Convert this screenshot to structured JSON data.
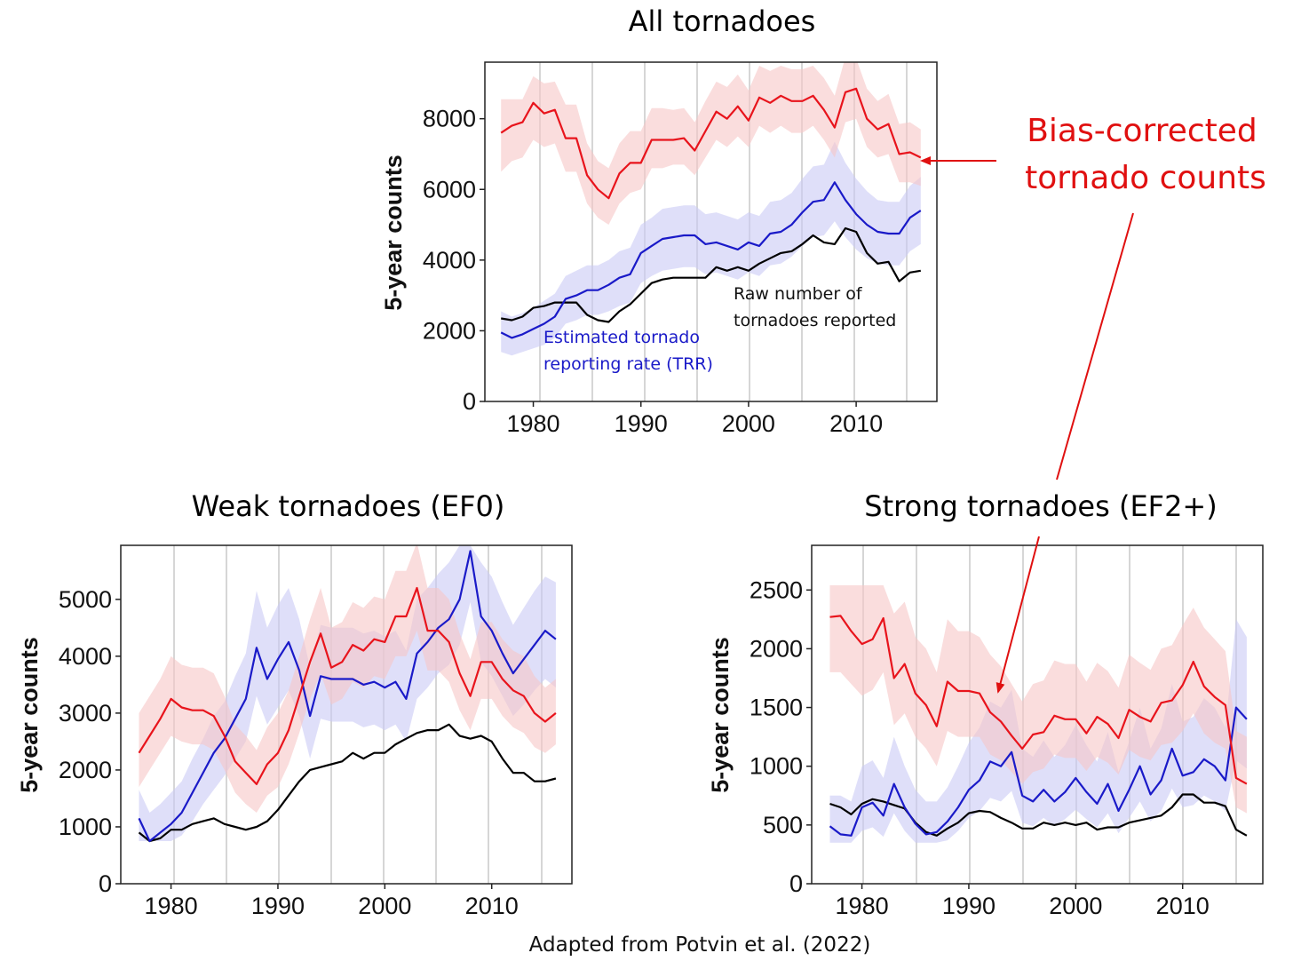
{
  "colors": {
    "bias_corrected": "#e8141c",
    "trr": "#1a1ac8",
    "raw": "#000000",
    "band_bias": "#f7c6c6",
    "band_trr": "#c9c9f5",
    "grid": "#d6d6d6"
  },
  "annotations": {
    "bias_corrected_line1": "Bias-corrected",
    "bias_corrected_line2": "tornado counts",
    "raw_line1": "Raw number of",
    "raw_line2": "tornadoes reported",
    "trr_line1": "Estimated tornado",
    "trr_line2": "reporting rate (TRR)",
    "credit": "Adapted from Potvin et al. (2022)"
  },
  "chart_data": [
    {
      "type": "line",
      "title": "All tornadoes",
      "ylabel": "5-year counts",
      "xlim": [
        1975.5,
        2017.5
      ],
      "ylim": [
        0,
        9600
      ],
      "xticks": [
        "1980",
        "1990",
        "2000",
        "2010"
      ],
      "yticks": [
        "0",
        "2000",
        "4000",
        "6000",
        "8000"
      ],
      "x": [
        1977,
        1978,
        1979,
        1980,
        1981,
        1982,
        1983,
        1984,
        1985,
        1986,
        1987,
        1988,
        1989,
        1990,
        1991,
        1992,
        1993,
        1994,
        1995,
        1996,
        1997,
        1998,
        1999,
        2000,
        2001,
        2002,
        2003,
        2004,
        2005,
        2006,
        2007,
        2008,
        2009,
        2010,
        2011,
        2012,
        2013,
        2014,
        2015,
        2016
      ],
      "series": [
        {
          "key": "bias",
          "values": [
            7600,
            7800,
            7900,
            8450,
            8150,
            8250,
            7450,
            7450,
            6400,
            6000,
            5750,
            6450,
            6750,
            6750,
            7400,
            7400,
            7400,
            7450,
            7100,
            7650,
            8200,
            8000,
            8350,
            7950,
            8600,
            8450,
            8650,
            8500,
            8500,
            8650,
            8250,
            7750,
            8750,
            8850,
            8000,
            7700,
            7850,
            7000,
            7050,
            6900
          ],
          "lower": [
            6500,
            6800,
            6900,
            7400,
            7200,
            7300,
            6500,
            6500,
            5600,
            5200,
            5000,
            5600,
            5900,
            6000,
            6600,
            6600,
            6700,
            6700,
            6400,
            6900,
            7400,
            7200,
            7500,
            7200,
            7800,
            7600,
            7800,
            7600,
            7600,
            7800,
            7400,
            6900,
            7900,
            8000,
            7200,
            6900,
            7000,
            6200,
            6200,
            6100
          ],
          "upper": [
            8550,
            8550,
            8550,
            9200,
            9000,
            9050,
            8400,
            8400,
            7300,
            6800,
            6600,
            7300,
            7650,
            7650,
            8300,
            8300,
            8250,
            8300,
            7900,
            8500,
            9050,
            8900,
            9250,
            8800,
            9500,
            9350,
            9500,
            9400,
            9400,
            9500,
            9150,
            8650,
            9750,
            9700,
            8850,
            8500,
            8700,
            7850,
            7900,
            7700
          ]
        },
        {
          "key": "trr",
          "values": [
            1950,
            1800,
            1900,
            2050,
            2200,
            2400,
            2900,
            3000,
            3150,
            3150,
            3300,
            3500,
            3600,
            4200,
            4400,
            4600,
            4650,
            4700,
            4700,
            4450,
            4500,
            4400,
            4300,
            4500,
            4400,
            4750,
            4800,
            5000,
            5350,
            5650,
            5700,
            6200,
            5700,
            5300,
            5000,
            4800,
            4750,
            4750,
            5200,
            5400
          ],
          "lower": [
            1400,
            1300,
            1400,
            1500,
            1600,
            1800,
            2200,
            2300,
            2450,
            2450,
            2550,
            2700,
            2800,
            3350,
            3550,
            3700,
            3750,
            3800,
            3800,
            3600,
            3650,
            3550,
            3450,
            3650,
            3550,
            3850,
            3900,
            4100,
            4400,
            4650,
            4700,
            5100,
            4650,
            4300,
            4050,
            3900,
            3850,
            3850,
            4250,
            4450
          ],
          "upper": [
            2550,
            2400,
            2500,
            2650,
            2850,
            3050,
            3550,
            3700,
            3850,
            3850,
            4000,
            4250,
            4350,
            5000,
            5200,
            5450,
            5500,
            5550,
            5550,
            5300,
            5350,
            5250,
            5150,
            5350,
            5250,
            5650,
            5700,
            5900,
            6300,
            6650,
            6700,
            7350,
            6750,
            6300,
            5950,
            5700,
            5650,
            5650,
            6100,
            6350
          ]
        },
        {
          "key": "raw",
          "values": [
            2350,
            2300,
            2400,
            2650,
            2700,
            2800,
            2800,
            2800,
            2450,
            2300,
            2250,
            2550,
            2750,
            3050,
            3350,
            3450,
            3500,
            3500,
            3500,
            3500,
            3800,
            3700,
            3800,
            3700,
            3900,
            4050,
            4200,
            4250,
            4450,
            4700,
            4500,
            4450,
            4900,
            4800,
            4200,
            3900,
            3950,
            3400,
            3650,
            3700
          ]
        }
      ]
    },
    {
      "type": "line",
      "title": "Weak tornadoes (EF0)",
      "ylabel": "5-year counts",
      "xlim": [
        1975.3,
        2017.5
      ],
      "ylim": [
        0,
        5950
      ],
      "xticks": [
        "1980",
        "1990",
        "2000",
        "2010"
      ],
      "yticks": [
        "0",
        "1000",
        "2000",
        "3000",
        "4000",
        "5000"
      ],
      "x": [
        1977,
        1978,
        1979,
        1980,
        1981,
        1982,
        1983,
        1984,
        1985,
        1986,
        1987,
        1988,
        1989,
        1990,
        1991,
        1992,
        1993,
        1994,
        1995,
        1996,
        1997,
        1998,
        1999,
        2000,
        2001,
        2002,
        2003,
        2004,
        2005,
        2006,
        2007,
        2008,
        2009,
        2010,
        2011,
        2012,
        2013,
        2014,
        2015,
        2016
      ],
      "series": [
        {
          "key": "bias",
          "values": [
            2300,
            2600,
            2900,
            3250,
            3100,
            3050,
            3050,
            2950,
            2600,
            2150,
            1950,
            1750,
            2100,
            2300,
            2700,
            3300,
            3900,
            4400,
            3800,
            3900,
            4200,
            4100,
            4300,
            4250,
            4700,
            4700,
            5200,
            4450,
            4450,
            4250,
            3700,
            3300,
            3900,
            3900,
            3600,
            3400,
            3300,
            3000,
            2850,
            3000
          ],
          "lower": [
            1700,
            2000,
            2300,
            2600,
            2500,
            2450,
            2450,
            2350,
            2000,
            1600,
            1400,
            1250,
            1550,
            1700,
            2100,
            2650,
            3250,
            3700,
            3150,
            3250,
            3550,
            3450,
            3650,
            3600,
            4000,
            4000,
            4450,
            3750,
            3750,
            3550,
            3050,
            2700,
            3250,
            3250,
            2950,
            2750,
            2650,
            2400,
            2300,
            2450
          ],
          "upper": [
            3000,
            3300,
            3600,
            4000,
            3850,
            3800,
            3800,
            3700,
            3300,
            2800,
            2600,
            2350,
            2750,
            3000,
            3400,
            4000,
            4650,
            5200,
            4500,
            4600,
            4950,
            4850,
            5050,
            5000,
            5500,
            5500,
            6000,
            5200,
            5200,
            5000,
            4400,
            3950,
            4600,
            4600,
            4300,
            4100,
            4000,
            3650,
            3450,
            3600
          ]
        },
        {
          "key": "trr",
          "values": [
            1150,
            750,
            900,
            1050,
            1250,
            1600,
            1950,
            2300,
            2550,
            2900,
            3250,
            4150,
            3600,
            3950,
            4250,
            3750,
            2950,
            3650,
            3600,
            3600,
            3600,
            3500,
            3550,
            3450,
            3550,
            3250,
            4050,
            4250,
            4500,
            4650,
            5000,
            5850,
            4700,
            4450,
            4050,
            3700,
            3950,
            4200,
            4450,
            4300
          ],
          "lower": [
            750,
            750,
            750,
            750,
            850,
            1100,
            1400,
            1650,
            1900,
            2200,
            2500,
            3300,
            2800,
            3100,
            3400,
            2950,
            2200,
            2900,
            2850,
            2850,
            2850,
            2750,
            2800,
            2700,
            2800,
            2500,
            3250,
            3450,
            3700,
            3850,
            4200,
            4950,
            3900,
            3650,
            3300,
            2950,
            3150,
            3400,
            3600,
            3450
          ],
          "upper": [
            1650,
            1250,
            1400,
            1600,
            1800,
            2200,
            2550,
            2950,
            3200,
            3650,
            4050,
            5150,
            4500,
            4900,
            5200,
            4650,
            3800,
            4550,
            4500,
            4500,
            4500,
            4400,
            4450,
            4350,
            4450,
            4100,
            5000,
            5200,
            5450,
            5650,
            5950,
            5950,
            5650,
            5400,
            4950,
            4550,
            4850,
            5150,
            5400,
            5300
          ]
        },
        {
          "key": "raw",
          "values": [
            900,
            750,
            800,
            950,
            950,
            1050,
            1100,
            1150,
            1050,
            1000,
            950,
            1000,
            1100,
            1300,
            1550,
            1800,
            2000,
            2050,
            2100,
            2150,
            2300,
            2200,
            2300,
            2300,
            2450,
            2550,
            2650,
            2700,
            2700,
            2800,
            2600,
            2550,
            2600,
            2500,
            2200,
            1950,
            1950,
            1800,
            1800,
            1850
          ]
        }
      ]
    },
    {
      "type": "line",
      "title": "Strong tornadoes (EF2+)",
      "ylabel": "5-year counts",
      "xlim": [
        1975.3,
        2017.5
      ],
      "ylim": [
        0,
        2880
      ],
      "xticks": [
        "1980",
        "1990",
        "2000",
        "2010"
      ],
      "yticks": [
        "0",
        "500",
        "1000",
        "1500",
        "2000",
        "2500"
      ],
      "x": [
        1977,
        1978,
        1979,
        1980,
        1981,
        1982,
        1983,
        1984,
        1985,
        1986,
        1987,
        1988,
        1989,
        1990,
        1991,
        1992,
        1993,
        1994,
        1995,
        1996,
        1997,
        1998,
        1999,
        2000,
        2001,
        2002,
        2003,
        2004,
        2005,
        2006,
        2007,
        2008,
        2009,
        2010,
        2011,
        2012,
        2013,
        2014,
        2015,
        2016
      ],
      "series": [
        {
          "key": "bias",
          "values": [
            2270,
            2280,
            2150,
            2040,
            2080,
            2260,
            1750,
            1870,
            1620,
            1520,
            1340,
            1720,
            1640,
            1640,
            1620,
            1460,
            1380,
            1260,
            1150,
            1270,
            1290,
            1430,
            1400,
            1400,
            1280,
            1420,
            1360,
            1240,
            1480,
            1420,
            1380,
            1540,
            1560,
            1690,
            1890,
            1680,
            1590,
            1520,
            900,
            850
          ],
          "lower": [
            1800,
            1800,
            1700,
            1600,
            1650,
            1800,
            1350,
            1450,
            1250,
            1150,
            1000,
            1300,
            1250,
            1250,
            1250,
            1100,
            1050,
            950,
            850,
            950,
            980,
            1100,
            1070,
            1070,
            960,
            1080,
            1030,
            930,
            1140,
            1080,
            1050,
            1180,
            1200,
            1300,
            1450,
            1280,
            1200,
            1150,
            650,
            600
          ],
          "upper": [
            2540,
            2540,
            2540,
            2540,
            2540,
            2540,
            2300,
            2400,
            2100,
            2000,
            1800,
            2250,
            2150,
            2150,
            2100,
            1950,
            1850,
            1700,
            1550,
            1700,
            1730,
            1900,
            1870,
            1870,
            1720,
            1880,
            1810,
            1670,
            1950,
            1880,
            1820,
            2000,
            2030,
            2200,
            2350,
            2180,
            2080,
            1980,
            1300,
            1250
          ]
        },
        {
          "key": "trr",
          "values": [
            490,
            420,
            410,
            650,
            690,
            580,
            850,
            650,
            510,
            420,
            440,
            530,
            650,
            800,
            880,
            1040,
            1000,
            1120,
            750,
            700,
            800,
            700,
            780,
            900,
            780,
            680,
            850,
            620,
            800,
            1000,
            760,
            880,
            1150,
            920,
            950,
            1060,
            1000,
            880,
            1500,
            1400
          ],
          "lower": [
            350,
            350,
            350,
            450,
            480,
            400,
            600,
            450,
            350,
            350,
            350,
            370,
            450,
            560,
            620,
            730,
            700,
            790,
            520,
            490,
            560,
            490,
            550,
            630,
            550,
            480,
            600,
            430,
            560,
            700,
            530,
            620,
            810,
            650,
            670,
            750,
            700,
            620,
            1050,
            980
          ],
          "upper": [
            750,
            750,
            700,
            1000,
            1050,
            900,
            1250,
            1000,
            800,
            700,
            700,
            820,
            1000,
            1200,
            1330,
            1550,
            1500,
            1650,
            1150,
            1080,
            1220,
            1080,
            1180,
            1350,
            1180,
            1040,
            1290,
            950,
            1210,
            1500,
            1150,
            1320,
            1700,
            1380,
            1420,
            1580,
            1500,
            1330,
            2250,
            2100
          ]
        },
        {
          "key": "raw",
          "values": [
            680,
            650,
            590,
            680,
            720,
            700,
            670,
            640,
            520,
            440,
            410,
            470,
            520,
            600,
            620,
            610,
            560,
            520,
            470,
            470,
            520,
            500,
            520,
            500,
            520,
            460,
            480,
            480,
            520,
            540,
            560,
            580,
            650,
            760,
            760,
            690,
            690,
            660,
            460,
            410
          ]
        }
      ]
    }
  ]
}
